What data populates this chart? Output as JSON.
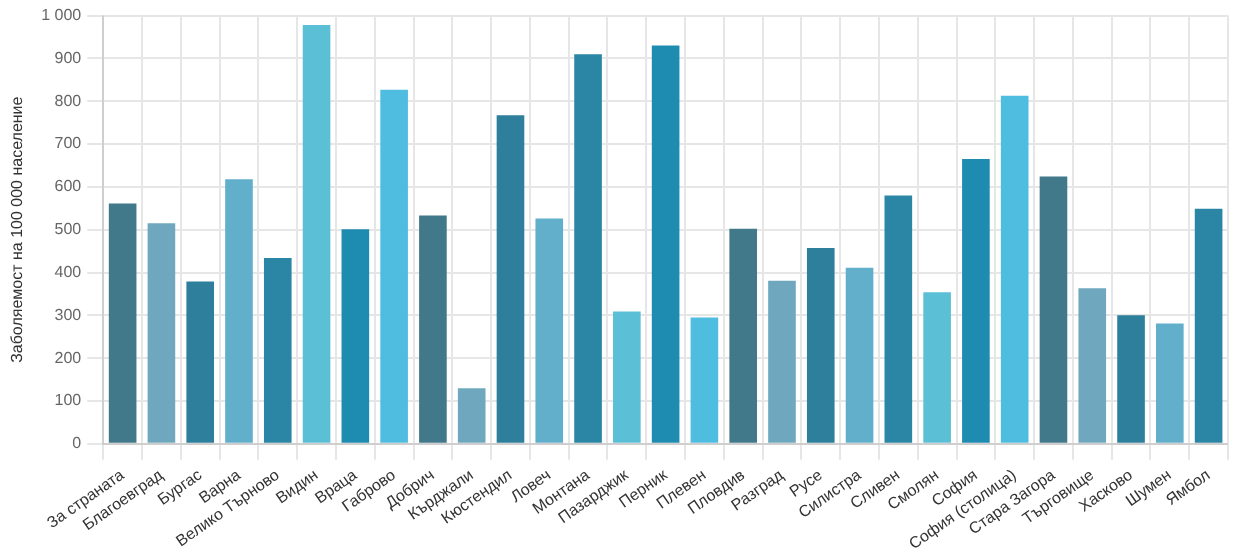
{
  "chart_data": {
    "type": "bar",
    "ylabel": "Заболяемост на 100 000 население",
    "categories": [
      "За страната",
      "Благоевград",
      "Бургас",
      "Варна",
      "Велико Търново",
      "Видин",
      "Враца",
      "Габрово",
      "Добрич",
      "Кърджали",
      "Кюстендил",
      "Ловеч",
      "Монтана",
      "Пазарджик",
      "Перник",
      "Плевен",
      "Пловдив",
      "Разград",
      "Русе",
      "Силистра",
      "Сливен",
      "Смолян",
      "София",
      "София (столица)",
      "Стара Загора",
      "Търговище",
      "Хасково",
      "Шумен",
      "Ямбол"
    ],
    "values": [
      561,
      515,
      379,
      618,
      434,
      978,
      501,
      827,
      533,
      130,
      767,
      526,
      910,
      309,
      930,
      295,
      502,
      381,
      457,
      411,
      580,
      354,
      665,
      813,
      624,
      363,
      300,
      281,
      549
    ],
    "colors": [
      "#41788a",
      "#6fa8be",
      "#2e7f9b",
      "#62afcc",
      "#2a86a4",
      "#5bbfd6",
      "#1e8bb0",
      "#4fbde0",
      "#41788a",
      "#6fa8be",
      "#2e7f9b",
      "#62afcc",
      "#2a86a4",
      "#5bbfd6",
      "#1e8bb0",
      "#4fbde0",
      "#41788a",
      "#6fa8be",
      "#2e7f9b",
      "#62afcc",
      "#2a86a4",
      "#5bbfd6",
      "#1e8bb0",
      "#4fbde0",
      "#41788a",
      "#6fa8be",
      "#2e7f9b",
      "#62afcc",
      "#2a86a4"
    ],
    "ylim": [
      0,
      1000
    ],
    "yticks": [
      0,
      100,
      200,
      300,
      400,
      500,
      600,
      700,
      800,
      900,
      {
        "value": 1000,
        "label": "1 000"
      }
    ],
    "grid": true,
    "legend": false
  }
}
